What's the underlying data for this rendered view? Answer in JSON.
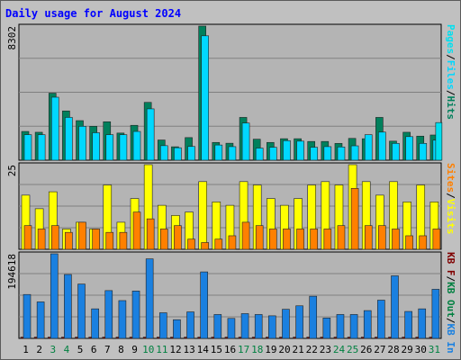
{
  "title": "Daily usage for August 2024",
  "colors": {
    "background": "#c0c0c0",
    "plot_bg": "#b4b4b4",
    "pages": "#00e0f0",
    "files": "#00d8ff",
    "hits": "#00805c",
    "visits": "#ffff00",
    "sites": "#ff8000",
    "kb_in": "#1a80e0",
    "kb_out": "#008040",
    "kb_f": "#800000",
    "title": "#0000ff",
    "weekend_label": "#008040"
  },
  "chart_data": [
    {
      "type": "bar",
      "panel": "hits-files-pages",
      "categories": [
        "1",
        "2",
        "3",
        "4",
        "5",
        "6",
        "7",
        "8",
        "9",
        "10",
        "11",
        "12",
        "13",
        "14",
        "15",
        "16",
        "17",
        "18",
        "19",
        "20",
        "21",
        "22",
        "23",
        "24",
        "25",
        "26",
        "27",
        "28",
        "29",
        "30",
        "31"
      ],
      "y_max_label": "8302",
      "ylim": [
        0,
        8302
      ],
      "grid": true,
      "series": [
        {
          "name": "Hits",
          "color": "#00805c",
          "values": [
            1780,
            1730,
            4150,
            3050,
            2450,
            2100,
            2380,
            1680,
            2160,
            3580,
            1250,
            830,
            1400,
            8302,
            1100,
            1050,
            2650,
            1300,
            1100,
            1330,
            1330,
            1160,
            1160,
            1040,
            1350,
            1330,
            2650,
            1180,
            1730,
            1490,
            1560
          ]
        },
        {
          "name": "Files",
          "color": "#00d8ff",
          "values": [
            1580,
            1580,
            3900,
            2650,
            2100,
            1700,
            1580,
            1580,
            1780,
            3180,
            900,
            770,
            850,
            7700,
            940,
            840,
            2300,
            750,
            800,
            1210,
            1180,
            800,
            840,
            820,
            890,
            1580,
            1740,
            1040,
            1460,
            1040,
            1240
          ]
        },
        {
          "name": "Pages",
          "color": "#00e0f0",
          "values": [
            0,
            0,
            0,
            0,
            0,
            0,
            0,
            0,
            0,
            0,
            0,
            0,
            0,
            0,
            0,
            0,
            0,
            0,
            0,
            0,
            0,
            0,
            0,
            0,
            0,
            0,
            0,
            0,
            0,
            0,
            2330
          ]
        }
      ],
      "legend": [
        "Pages",
        "Files",
        "Hits"
      ],
      "legend_separator": "/"
    },
    {
      "type": "bar",
      "panel": "visits-sites",
      "categories": [
        "1",
        "2",
        "3",
        "4",
        "5",
        "6",
        "7",
        "8",
        "9",
        "10",
        "11",
        "12",
        "13",
        "14",
        "15",
        "16",
        "17",
        "18",
        "19",
        "20",
        "21",
        "22",
        "23",
        "24",
        "25",
        "26",
        "27",
        "28",
        "29",
        "30",
        "31"
      ],
      "y_max_label": "25",
      "ylim": [
        0,
        25
      ],
      "grid": true,
      "series": [
        {
          "name": "Visits",
          "color": "#ffff00",
          "values": [
            16,
            12,
            17,
            6,
            8,
            6,
            19,
            8,
            15,
            25,
            13,
            10,
            11,
            20,
            14,
            13,
            20,
            19,
            15,
            13,
            15,
            19,
            20,
            19,
            25,
            20,
            16,
            20,
            14,
            19,
            14
          ]
        },
        {
          "name": "Sites",
          "color": "#ff8000",
          "values": [
            7,
            6,
            7,
            5,
            8,
            6,
            5,
            5,
            11,
            9,
            6,
            7,
            3,
            2,
            3,
            4,
            8,
            7,
            6,
            6,
            6,
            6,
            6,
            7,
            18,
            7,
            7,
            6,
            4,
            4,
            6
          ]
        }
      ],
      "legend": [
        "Sites",
        "Visits"
      ],
      "legend_separator": "/"
    },
    {
      "type": "bar",
      "panel": "kbytes",
      "categories": [
        "1",
        "2",
        "3",
        "4",
        "5",
        "6",
        "7",
        "8",
        "9",
        "10",
        "11",
        "12",
        "13",
        "14",
        "15",
        "16",
        "17",
        "18",
        "19",
        "20",
        "21",
        "22",
        "23",
        "24",
        "25",
        "26",
        "27",
        "28",
        "29",
        "30",
        "31"
      ],
      "y_max_label": "194618",
      "ylim": [
        0,
        194618
      ],
      "grid": true,
      "series": [
        {
          "name": "KB F",
          "color": "#800000",
          "values": [
            3000,
            3000,
            3000,
            3000,
            3000,
            3000,
            3000,
            3000,
            3000,
            3000,
            3000,
            3000,
            3000,
            3000,
            3000,
            3000,
            3000,
            3000,
            3000,
            3000,
            3000,
            3000,
            3000,
            3000,
            3000,
            3000,
            3000,
            3000,
            3000,
            3000,
            3000
          ]
        },
        {
          "name": "KB Out",
          "color": "#008040",
          "values": [
            0,
            0,
            0,
            0,
            0,
            0,
            0,
            0,
            0,
            0,
            0,
            0,
            0,
            0,
            0,
            0,
            0,
            0,
            0,
            0,
            0,
            0,
            0,
            0,
            0,
            0,
            0,
            0,
            0,
            0,
            0
          ]
        },
        {
          "name": "KB In",
          "color": "#1a80e0",
          "values": [
            101000,
            84000,
            194618,
            147000,
            125000,
            68000,
            110000,
            87000,
            109000,
            183000,
            59000,
            43000,
            61000,
            153000,
            55000,
            46000,
            57000,
            55000,
            52000,
            67000,
            75000,
            97000,
            47000,
            55000,
            55000,
            64000,
            88000,
            144000,
            62000,
            68000,
            113000
          ]
        }
      ],
      "legend": [
        "KB F",
        "KB Out",
        "KB In"
      ],
      "legend_separator": "/"
    }
  ],
  "x_labels": {
    "weekend_days": [
      "3",
      "4",
      "10",
      "11",
      "17",
      "18",
      "24",
      "25",
      "31"
    ]
  }
}
